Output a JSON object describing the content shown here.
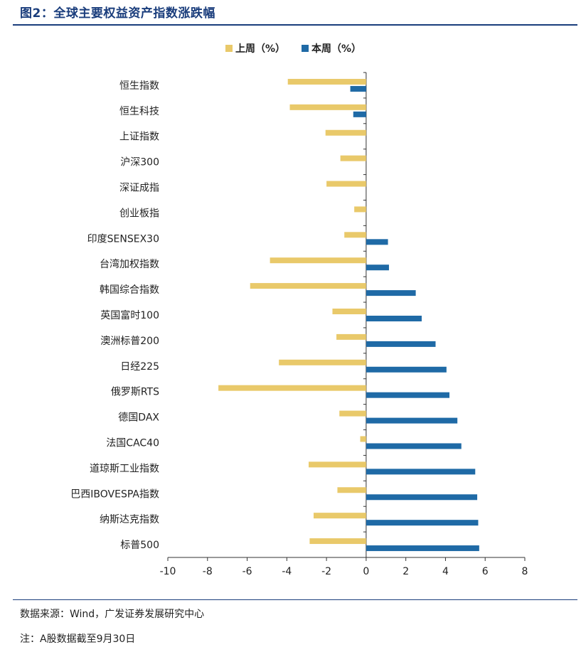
{
  "figure_title": "图2：全球主要权益资产指数涨跌幅",
  "source_note": "数据来源：Wind，广发证券发展研究中心",
  "footnote": "注：A股数据截至9月30日",
  "colors": {
    "last_week": "#e9c96a",
    "this_week": "#1f6aa6",
    "title": "#1a3d7c"
  },
  "chart_data": {
    "type": "bar",
    "orientation": "horizontal",
    "title": "",
    "xlabel": "",
    "ylabel": "",
    "xlim": [
      -10,
      8
    ],
    "x_ticks": [
      "-10",
      "-8",
      "-6",
      "-4",
      "-2",
      "0",
      "2",
      "4",
      "6",
      "8"
    ],
    "legend_position": "top-center",
    "grid": false,
    "categories": [
      "恒生指数",
      "恒生科技",
      "上证指数",
      "沪深300",
      "深证成指",
      "创业板指",
      "印度SENSEX30",
      "台湾加权指数",
      "韩国综合指数",
      "英国富时100",
      "澳洲标普200",
      "日经225",
      "俄罗斯RTS",
      "德国DAX",
      "法国CAC40",
      "道琼斯工业指数",
      "巴西IBOVESPA指数",
      "纳斯达克指数",
      "标普500"
    ],
    "series": [
      {
        "name": "上周（%）",
        "values": [
          -3.95,
          -3.85,
          -2.05,
          -1.3,
          -2.0,
          -0.6,
          -1.1,
          -4.85,
          -5.85,
          -1.7,
          -1.5,
          -4.4,
          -7.45,
          -1.35,
          -0.3,
          -2.9,
          -1.45,
          -2.65,
          -2.85
        ]
      },
      {
        "name": "本周（%）",
        "values": [
          -0.8,
          -0.65,
          0,
          0,
          0,
          0,
          1.1,
          1.15,
          2.5,
          2.8,
          3.5,
          4.05,
          4.2,
          4.6,
          4.8,
          5.5,
          5.6,
          5.65,
          5.7
        ]
      }
    ]
  }
}
